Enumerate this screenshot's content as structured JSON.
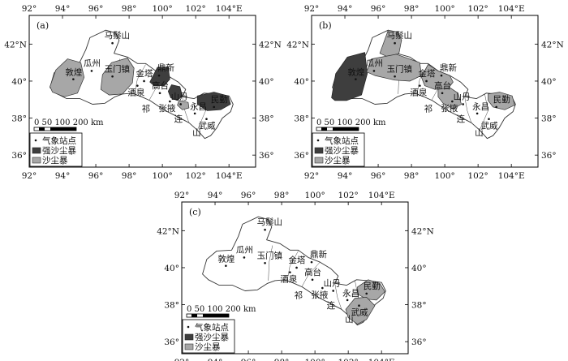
{
  "maps": [
    {
      "panel_label": "(a)",
      "zones": [
        {
          "category": "dust_storm",
          "color": "#a7a7a7",
          "region": "敦煌"
        },
        {
          "category": "dust_storm",
          "color": "#a7a7a7",
          "region": "玉门镇"
        },
        {
          "category": "strong_dust_storm",
          "color": "#3e3e3e",
          "region": "鼎新"
        },
        {
          "category": "strong_dust_storm",
          "color": "#3e3e3e",
          "region": "张掖"
        },
        {
          "category": "dust_storm",
          "color": "#a7a7a7",
          "region": "山丹"
        },
        {
          "category": "strong_dust_storm",
          "color": "#3e3e3e",
          "region": "民勤"
        }
      ]
    },
    {
      "panel_label": "(b)",
      "zones": [
        {
          "category": "strong_dust_storm",
          "color": "#3e3e3e",
          "region": "敦煌"
        },
        {
          "category": "dust_storm",
          "color": "#a7a7a7",
          "region": "马鬃山"
        },
        {
          "category": "dust_storm",
          "color": "#a7a7a7",
          "region": "玉门镇"
        },
        {
          "category": "dust_storm",
          "color": "#a7a7a7",
          "region": "鼎新"
        },
        {
          "category": "dust_storm",
          "color": "#a7a7a7",
          "region": "张掖"
        },
        {
          "category": "dust_storm",
          "color": "#a7a7a7",
          "region": "民勤"
        }
      ]
    },
    {
      "panel_label": "(c)",
      "zones": [
        {
          "category": "dust_storm",
          "color": "#a7a7a7",
          "region": "民勤"
        },
        {
          "category": "dust_storm",
          "color": "#a7a7a7",
          "region": "武威"
        }
      ]
    }
  ],
  "lon_ticks": [
    "92°",
    "94°",
    "96°",
    "98°",
    "100°",
    "102°",
    "104°E"
  ],
  "lat_ticks": [
    "42°N",
    "40°",
    "38°",
    "36°"
  ],
  "stations": {
    "mazongshan": "马鬃山",
    "guazhou": "瓜州",
    "dunhuang": "敦煌",
    "yumenzhen": "玉门镇",
    "jinta": "金塔",
    "dingxin": "鼎新",
    "jiuquan": "酒泉",
    "gaotai": "高台",
    "shandan": "山丹",
    "zhangye": "张掖",
    "yongchang": "永昌",
    "minqin": "民勤",
    "qi": "祁",
    "lian": "连",
    "shan": "山",
    "wuwei": "武威"
  },
  "scale_bar": "0 50 100 200 km",
  "legend": {
    "station": "气象站点",
    "strong_dust_storm": "强沙尘暴",
    "dust_storm": "沙尘暴"
  }
}
